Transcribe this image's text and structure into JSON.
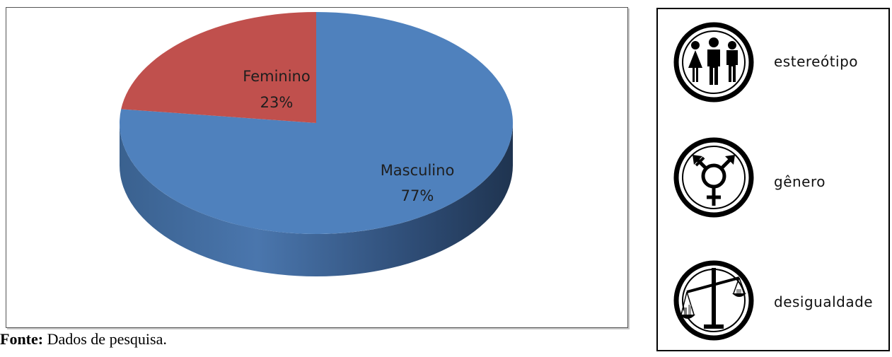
{
  "chart_data": {
    "type": "pie",
    "title": "",
    "slices": [
      {
        "label": "Masculino",
        "value": 77,
        "percent_label": "77%",
        "color": "#4f81bd"
      },
      {
        "label": "Feminino",
        "value": 23,
        "percent_label": "23%",
        "color": "#c0504d"
      }
    ]
  },
  "source_note": {
    "bold": "Fonte:",
    "text": " Dados de pesquisa."
  },
  "icon_panel": {
    "items": [
      {
        "icon": "people-icon",
        "label": "estereótipo"
      },
      {
        "icon": "gender-symbol-icon",
        "label": "gênero"
      },
      {
        "icon": "balance-scale-icon",
        "label": "desigualdade"
      }
    ]
  }
}
